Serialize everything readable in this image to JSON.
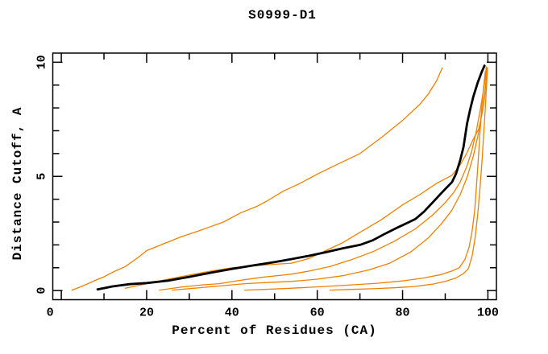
{
  "chart_data": {
    "type": "line",
    "title": "S0999-D1",
    "xlabel": "Percent of Residues (CA)",
    "ylabel": "Distance Cutoff, A",
    "xlim": [
      -2,
      102
    ],
    "ylim": [
      -0.4,
      10.4
    ],
    "grid": false,
    "legend": "none",
    "x_ticks_major": [
      0,
      20,
      40,
      60,
      80,
      100
    ],
    "x_ticks_minor": [
      10,
      30,
      50,
      70,
      90
    ],
    "y_ticks_major": [
      0,
      5,
      10
    ],
    "y_ticks_minor": [
      1,
      2,
      3,
      4,
      6,
      7,
      8,
      9
    ],
    "colors": {
      "highlight": "#000000",
      "other_models": "#ee8100",
      "axis": "#000000",
      "background": "#ffffff"
    },
    "series": [
      {
        "id": "orange-model-1",
        "color": "#ee8100",
        "width": 1.3,
        "points": [
          [
            2.5,
            0.02
          ],
          [
            5,
            0.2
          ],
          [
            8,
            0.45
          ],
          [
            10,
            0.6
          ],
          [
            12,
            0.8
          ],
          [
            15,
            1.05
          ],
          [
            18,
            1.45
          ],
          [
            20,
            1.75
          ],
          [
            24,
            2.05
          ],
          [
            28,
            2.35
          ],
          [
            32,
            2.6
          ],
          [
            35,
            2.8
          ],
          [
            38,
            3.0
          ],
          [
            42,
            3.4
          ],
          [
            46,
            3.7
          ],
          [
            48,
            3.9
          ],
          [
            52,
            4.35
          ],
          [
            56,
            4.7
          ],
          [
            60,
            5.1
          ],
          [
            65,
            5.55
          ],
          [
            70,
            6.0
          ],
          [
            75,
            6.7
          ],
          [
            80,
            7.45
          ],
          [
            84,
            8.15
          ],
          [
            86,
            8.6
          ],
          [
            88,
            9.2
          ],
          [
            89.3,
            9.75
          ]
        ]
      },
      {
        "id": "orange-model-2",
        "color": "#ee8100",
        "width": 1.3,
        "points": [
          [
            15,
            0.1
          ],
          [
            20,
            0.3
          ],
          [
            25,
            0.5
          ],
          [
            30,
            0.68
          ],
          [
            35,
            0.85
          ],
          [
            40,
            1.0
          ],
          [
            45,
            1.08
          ],
          [
            50,
            1.15
          ],
          [
            54,
            1.2
          ],
          [
            58,
            1.4
          ],
          [
            62,
            1.75
          ],
          [
            66,
            2.1
          ],
          [
            70,
            2.55
          ],
          [
            75,
            3.1
          ],
          [
            80,
            3.75
          ],
          [
            84,
            4.2
          ],
          [
            88,
            4.7
          ],
          [
            91.6,
            5.05
          ],
          [
            93.5,
            5.5
          ],
          [
            95,
            6.0
          ],
          [
            96.5,
            6.6
          ],
          [
            97.9,
            7.1
          ],
          [
            98.8,
            7.9
          ],
          [
            99.3,
            8.6
          ],
          [
            99.6,
            9.3
          ],
          [
            99.7,
            9.8
          ]
        ]
      },
      {
        "id": "orange-model-3",
        "color": "#ee8100",
        "width": 1.3,
        "points": [
          [
            23,
            0.02
          ],
          [
            28,
            0.15
          ],
          [
            33,
            0.25
          ],
          [
            37,
            0.3
          ],
          [
            42,
            0.45
          ],
          [
            47,
            0.58
          ],
          [
            52,
            0.68
          ],
          [
            54,
            0.72
          ],
          [
            58,
            0.85
          ],
          [
            63,
            1.05
          ],
          [
            68,
            1.35
          ],
          [
            73,
            1.7
          ],
          [
            78,
            2.15
          ],
          [
            83,
            2.7
          ],
          [
            87,
            3.3
          ],
          [
            90,
            3.85
          ],
          [
            92,
            4.3
          ],
          [
            93.5,
            4.75
          ],
          [
            95,
            5.4
          ],
          [
            96.2,
            6.1
          ],
          [
            97.2,
            6.9
          ],
          [
            98.2,
            7.9
          ],
          [
            99,
            8.8
          ],
          [
            99.5,
            9.5
          ],
          [
            99.6,
            9.8
          ]
        ]
      },
      {
        "id": "orange-model-4",
        "color": "#ee8100",
        "width": 1.3,
        "points": [
          [
            26,
            0.02
          ],
          [
            31,
            0.1
          ],
          [
            37,
            0.2
          ],
          [
            43,
            0.3
          ],
          [
            48,
            0.35
          ],
          [
            54,
            0.4
          ],
          [
            60,
            0.5
          ],
          [
            66,
            0.65
          ],
          [
            72,
            0.9
          ],
          [
            77,
            1.2
          ],
          [
            82,
            1.7
          ],
          [
            86,
            2.3
          ],
          [
            89,
            2.9
          ],
          [
            91.5,
            3.5
          ],
          [
            93.5,
            4.2
          ],
          [
            95.2,
            5.0
          ],
          [
            96.6,
            5.9
          ],
          [
            97.8,
            6.9
          ],
          [
            98.8,
            8.0
          ],
          [
            99.5,
            9.0
          ],
          [
            99.8,
            9.7
          ]
        ]
      },
      {
        "id": "orange-model-5",
        "color": "#ee8100",
        "width": 1.3,
        "points": [
          [
            43,
            0.02
          ],
          [
            50,
            0.07
          ],
          [
            56,
            0.12
          ],
          [
            62,
            0.18
          ],
          [
            68,
            0.25
          ],
          [
            74,
            0.32
          ],
          [
            80,
            0.42
          ],
          [
            85,
            0.55
          ],
          [
            89,
            0.7
          ],
          [
            91.5,
            0.85
          ],
          [
            93.3,
            1.0
          ],
          [
            94.6,
            1.35
          ],
          [
            95.6,
            1.9
          ],
          [
            96.3,
            2.6
          ],
          [
            96.9,
            3.5
          ],
          [
            97.3,
            4.5
          ],
          [
            97.7,
            5.6
          ],
          [
            98.1,
            6.8
          ],
          [
            98.5,
            7.9
          ],
          [
            99,
            8.9
          ],
          [
            99.4,
            9.6
          ]
        ]
      },
      {
        "id": "orange-model-6",
        "color": "#ee8100",
        "width": 1.3,
        "points": [
          [
            63,
            0.02
          ],
          [
            68,
            0.05
          ],
          [
            73,
            0.08
          ],
          [
            78,
            0.12
          ],
          [
            83,
            0.18
          ],
          [
            87,
            0.28
          ],
          [
            90,
            0.4
          ],
          [
            92.5,
            0.55
          ],
          [
            94.3,
            0.75
          ],
          [
            95.4,
            0.95
          ],
          [
            96.3,
            1.5
          ],
          [
            97,
            2.3
          ],
          [
            97.6,
            3.3
          ],
          [
            98.1,
            4.4
          ],
          [
            98.6,
            5.6
          ],
          [
            99,
            6.8
          ],
          [
            99.4,
            8.0
          ],
          [
            99.7,
            9.0
          ],
          [
            99.9,
            9.75
          ]
        ]
      },
      {
        "id": "highlighted-model-black",
        "color": "#000000",
        "width": 2.8,
        "points": [
          [
            8.5,
            0.05
          ],
          [
            12,
            0.18
          ],
          [
            16,
            0.28
          ],
          [
            20,
            0.33
          ],
          [
            25,
            0.43
          ],
          [
            30,
            0.6
          ],
          [
            35,
            0.78
          ],
          [
            40,
            0.95
          ],
          [
            45,
            1.1
          ],
          [
            50,
            1.25
          ],
          [
            54,
            1.38
          ],
          [
            58,
            1.52
          ],
          [
            62,
            1.68
          ],
          [
            66,
            1.85
          ],
          [
            70,
            2.0
          ],
          [
            73,
            2.2
          ],
          [
            76,
            2.5
          ],
          [
            79,
            2.78
          ],
          [
            81,
            2.95
          ],
          [
            83,
            3.13
          ],
          [
            85,
            3.45
          ],
          [
            87,
            3.85
          ],
          [
            88.5,
            4.15
          ],
          [
            90,
            4.45
          ],
          [
            91.6,
            4.75
          ],
          [
            92.5,
            5.1
          ],
          [
            93.5,
            5.7
          ],
          [
            94.3,
            6.3
          ],
          [
            95.1,
            7.3
          ],
          [
            95.8,
            7.9
          ],
          [
            96.6,
            8.5
          ],
          [
            97.6,
            9.1
          ],
          [
            98.5,
            9.55
          ],
          [
            99.2,
            9.85
          ]
        ]
      }
    ]
  }
}
